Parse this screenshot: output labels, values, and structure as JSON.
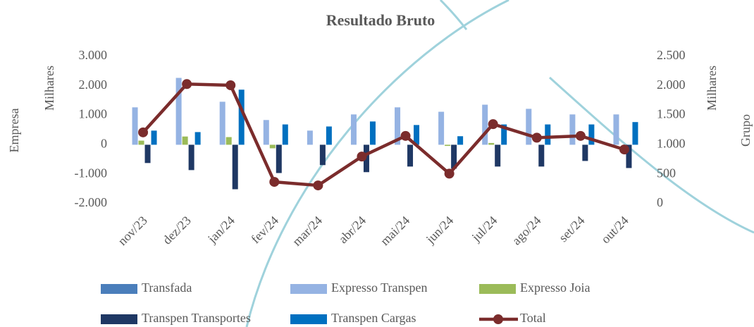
{
  "chart_data": {
    "type": "bar",
    "title": "Resultado Bruto",
    "y_label": "Empresa",
    "y_unit": "Milhares",
    "y2_label": "Grupo",
    "y2_unit": "Milhares",
    "categories": [
      "nov/23",
      "dez/23",
      "jan/24",
      "fev/24",
      "mar/24",
      "abr/24",
      "mai/24",
      "jun/24",
      "jul/24",
      "ago/24",
      "set/24",
      "out/24"
    ],
    "ylim": [
      -2000,
      3000
    ],
    "yticks": [
      {
        "value": -2000,
        "label": "-2.000"
      },
      {
        "value": -1000,
        "label": "-1.000"
      },
      0,
      {
        "value": 1000,
        "label": "1.000"
      },
      {
        "value": 2000,
        "label": "2.000"
      },
      {
        "value": 3000,
        "label": "3.000"
      }
    ],
    "y2lim": [
      0,
      2500
    ],
    "y2ticks": [
      0,
      500,
      {
        "value": 1000,
        "label": "1.000"
      },
      {
        "value": 1500,
        "label": "1.500"
      },
      {
        "value": 2000,
        "label": "2.000"
      },
      {
        "value": 2500,
        "label": "2.500"
      }
    ],
    "grid": false,
    "legend": "bottom",
    "series": [
      {
        "name": "Transfada",
        "color": "#4a7ebb",
        "type": "bar",
        "values": [
          0,
          0,
          0,
          0,
          0,
          0,
          0,
          0,
          0,
          0,
          0,
          0
        ]
      },
      {
        "name": "Expresso Transpen",
        "color": "#95b3e3",
        "type": "bar",
        "values": [
          1270,
          2270,
          1460,
          840,
          480,
          1030,
          1270,
          1120,
          1360,
          1220,
          1030,
          1030
        ]
      },
      {
        "name": "Expresso Joia",
        "color": "#9bbb59",
        "type": "bar",
        "values": [
          140,
          280,
          260,
          -120,
          0,
          0,
          0,
          -40,
          60,
          0,
          0,
          0
        ]
      },
      {
        "name": "Transpen Transportes",
        "color": "#1f3864",
        "type": "bar",
        "values": [
          -620,
          -860,
          -1510,
          -960,
          -690,
          -930,
          -740,
          -810,
          -740,
          -740,
          -550,
          -790
        ]
      },
      {
        "name": "Transpen Cargas",
        "color": "#0070c0",
        "type": "bar",
        "values": [
          480,
          430,
          1870,
          690,
          620,
          790,
          670,
          290,
          690,
          690,
          690,
          770
        ]
      },
      {
        "name": "Total",
        "color": "#7b2c2c",
        "type": "line",
        "axis": "y2",
        "values": [
          1210,
          2030,
          2010,
          370,
          310,
          800,
          1150,
          510,
          1350,
          1120,
          1150,
          920
        ]
      }
    ]
  }
}
